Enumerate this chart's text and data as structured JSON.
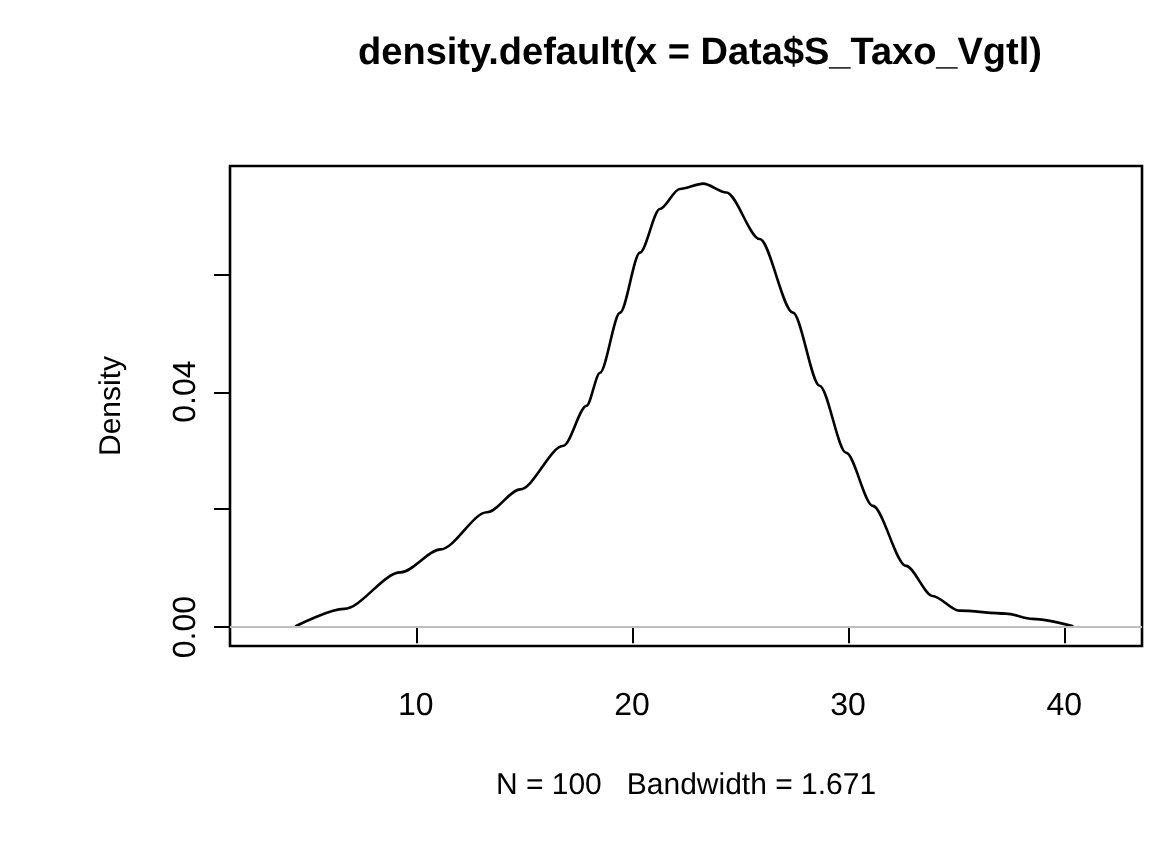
{
  "chart_data": {
    "type": "line",
    "title": "density.default(x = Data$S_Taxo_Vgtl)",
    "xlabel": "N = 100   Bandwidth = 1.671",
    "ylabel": "Density",
    "x": [
      4.46,
      6.68,
      9.29,
      11.14,
      13.29,
      14.83,
      16.83,
      17.9,
      18.52,
      19.45,
      20.37,
      21.29,
      22.21,
      23.3,
      24.37,
      25.91,
      27.45,
      28.68,
      29.91,
      31.14,
      32.68,
      33.91,
      35.14,
      37.3,
      38.53,
      40.38
    ],
    "series": [
      {
        "color": "#000000",
        "values": [
          0.0002,
          0.0031,
          0.0093,
          0.0132,
          0.0195,
          0.0234,
          0.0308,
          0.0376,
          0.0432,
          0.0534,
          0.0636,
          0.071,
          0.0744,
          0.0753,
          0.0738,
          0.0659,
          0.0534,
          0.041,
          0.0296,
          0.0206,
          0.0104,
          0.0053,
          0.0028,
          0.0023,
          0.0014,
          0.0002
        ]
      }
    ],
    "xlim": [
      1.4,
      43.6
    ],
    "xticks": [
      10,
      20,
      30,
      40
    ],
    "ylim": [
      -0.0032,
      0.0783
    ],
    "yticks": [
      {
        "value": 0,
        "label": "0.00"
      },
      {
        "value": 0.02,
        "label": null
      },
      {
        "value": 0.04,
        "label": "0.04"
      },
      {
        "value": 0.06,
        "label": null
      }
    ],
    "ref_lines": [
      {
        "axis": "y",
        "value": 0,
        "color": "#bebebe"
      }
    ],
    "grid": false,
    "marker": "none",
    "line_style": "solid"
  }
}
